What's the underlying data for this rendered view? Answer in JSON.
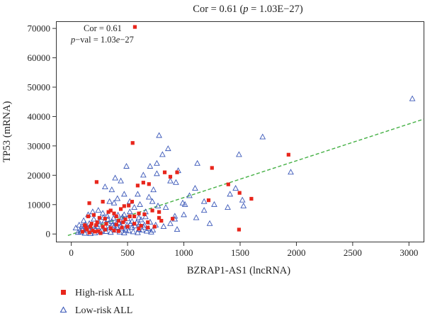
{
  "chart_data": {
    "type": "scatter",
    "title_main": "Cor = 0.61 (",
    "title_p": "p",
    "title_rest": " = 1.03E−27)",
    "xlabel": "BZRAP1-AS1 (lncRNA)",
    "ylabel": "TP53 (mRNA)",
    "xlim": [
      -130,
      3130
    ],
    "ylim": [
      -2600,
      72200
    ],
    "x_ticks": [
      0,
      500,
      1000,
      1500,
      2000,
      2500,
      3000
    ],
    "y_ticks": [
      0,
      10000,
      20000,
      30000,
      40000,
      50000,
      60000,
      70000
    ],
    "x_tick_labels": [
      "0",
      "500",
      "1000",
      "1500",
      "2000",
      "2500",
      "3000"
    ],
    "y_tick_labels": [
      "0",
      "10000",
      "20000",
      "30000",
      "40000",
      "50000",
      "60000",
      "70000"
    ],
    "annotation": {
      "cor_text": "Cor = 0.61",
      "p_label": "p",
      "p_rest": "−val = 1.03",
      "p_e": "e",
      "p_exp": "−27"
    },
    "fit_line": {
      "x": [
        -30,
        3130
      ],
      "y": [
        -500,
        39100
      ],
      "color": "#44b044"
    },
    "legend_position": "bottom-left",
    "series": [
      {
        "name": "High-risk ALL",
        "marker": "square",
        "color": "#e8261c",
        "points": [
          [
            565,
            70500
          ],
          [
            545,
            31000
          ],
          [
            940,
            21000
          ],
          [
            1250,
            22500
          ],
          [
            1930,
            27000
          ],
          [
            1495,
            14000
          ],
          [
            1395,
            16900
          ],
          [
            1600,
            12000
          ],
          [
            1220,
            11500
          ],
          [
            690,
            17000
          ],
          [
            830,
            21000
          ],
          [
            880,
            19500
          ],
          [
            225,
            17700
          ],
          [
            160,
            10500
          ],
          [
            280,
            11000
          ],
          [
            540,
            11000
          ],
          [
            640,
            17500
          ],
          [
            590,
            16500
          ],
          [
            380,
            7000
          ],
          [
            470,
            9500
          ],
          [
            510,
            9700
          ],
          [
            440,
            8500
          ],
          [
            350,
            8000
          ],
          [
            720,
            8000
          ],
          [
            780,
            7500
          ],
          [
            650,
            6700
          ],
          [
            600,
            7000
          ],
          [
            560,
            6000
          ],
          [
            780,
            5500
          ],
          [
            900,
            5200
          ],
          [
            680,
            4000
          ],
          [
            800,
            4500
          ],
          [
            1490,
            1500
          ],
          [
            150,
            6000
          ],
          [
            200,
            6500
          ],
          [
            250,
            5500
          ],
          [
            300,
            5200
          ],
          [
            330,
            7500
          ],
          [
            400,
            6000
          ],
          [
            480,
            5000
          ],
          [
            520,
            6000
          ],
          [
            460,
            4000
          ],
          [
            420,
            4500
          ],
          [
            560,
            3500
          ],
          [
            620,
            2800
          ],
          [
            680,
            2200
          ],
          [
            740,
            2500
          ],
          [
            120,
            3000
          ],
          [
            180,
            3500
          ],
          [
            220,
            3000
          ],
          [
            280,
            2500
          ],
          [
            140,
            1500
          ],
          [
            190,
            1200
          ],
          [
            240,
            1000
          ],
          [
            300,
            1500
          ],
          [
            350,
            2000
          ],
          [
            380,
            1200
          ],
          [
            420,
            1000
          ],
          [
            100,
            800
          ],
          [
            160,
            500
          ],
          [
            210,
            800
          ],
          [
            260,
            300
          ],
          [
            500,
            2500
          ],
          [
            600,
            1800
          ],
          [
            230,
            4000
          ],
          [
            310,
            3500
          ],
          [
            400,
            3200
          ],
          [
            450,
            2200
          ],
          [
            130,
            2200
          ],
          [
            170,
            2600
          ]
        ]
      },
      {
        "name": "Low-risk ALL",
        "marker": "triangle-open",
        "color": "#3a57b8",
        "points": [
          [
            3030,
            46000
          ],
          [
            1700,
            33000
          ],
          [
            1950,
            21000
          ],
          [
            1490,
            27000
          ],
          [
            780,
            33500
          ],
          [
            810,
            27000
          ],
          [
            860,
            29000
          ],
          [
            760,
            24000
          ],
          [
            880,
            18000
          ],
          [
            930,
            17500
          ],
          [
            1120,
            24000
          ],
          [
            950,
            21500
          ],
          [
            1100,
            15500
          ],
          [
            1180,
            11000
          ],
          [
            1410,
            13500
          ],
          [
            1460,
            15500
          ],
          [
            1520,
            11500
          ],
          [
            1530,
            9500
          ],
          [
            1390,
            9000
          ],
          [
            1230,
            3500
          ],
          [
            1270,
            10000
          ],
          [
            1010,
            10000
          ],
          [
            1050,
            13000
          ],
          [
            990,
            10500
          ],
          [
            920,
            5000
          ],
          [
            700,
            23000
          ],
          [
            640,
            20000
          ],
          [
            760,
            20500
          ],
          [
            730,
            15000
          ],
          [
            690,
            12500
          ],
          [
            590,
            13500
          ],
          [
            520,
            11000
          ],
          [
            470,
            13500
          ],
          [
            410,
            12000
          ],
          [
            360,
            15000
          ],
          [
            300,
            16000
          ],
          [
            490,
            23000
          ],
          [
            390,
            19000
          ],
          [
            440,
            18000
          ],
          [
            380,
            10500
          ],
          [
            340,
            11000
          ],
          [
            560,
            9000
          ],
          [
            610,
            10000
          ],
          [
            660,
            7500
          ],
          [
            720,
            11000
          ],
          [
            770,
            9500
          ],
          [
            840,
            9000
          ],
          [
            920,
            6000
          ],
          [
            1000,
            6500
          ],
          [
            1110,
            5500
          ],
          [
            1180,
            8000
          ],
          [
            470,
            6500
          ],
          [
            520,
            7500
          ],
          [
            600,
            5500
          ],
          [
            650,
            3000
          ],
          [
            700,
            4000
          ],
          [
            750,
            3000
          ],
          [
            820,
            2500
          ],
          [
            880,
            3500
          ],
          [
            940,
            1500
          ],
          [
            600,
            1500
          ],
          [
            540,
            2200
          ],
          [
            480,
            1600
          ],
          [
            440,
            2800
          ],
          [
            400,
            3500
          ],
          [
            360,
            4200
          ],
          [
            320,
            6000
          ],
          [
            280,
            7000
          ],
          [
            240,
            8000
          ],
          [
            200,
            5000
          ],
          [
            160,
            3500
          ],
          [
            130,
            2000
          ],
          [
            100,
            1500
          ],
          [
            80,
            1000
          ],
          [
            60,
            500
          ],
          [
            40,
            2000
          ],
          [
            70,
            3000
          ],
          [
            110,
            4500
          ],
          [
            150,
            6500
          ],
          [
            190,
            7500
          ],
          [
            230,
            2500
          ],
          [
            270,
            1200
          ],
          [
            310,
            800
          ],
          [
            350,
            500
          ],
          [
            390,
            1200
          ],
          [
            430,
            600
          ],
          [
            470,
            300
          ],
          [
            510,
            1000
          ],
          [
            550,
            700
          ],
          [
            590,
            400
          ],
          [
            630,
            1300
          ],
          [
            670,
            900
          ],
          [
            710,
            600
          ],
          [
            120,
            200
          ],
          [
            170,
            100
          ],
          [
            210,
            300
          ],
          [
            260,
            700
          ],
          [
            300,
            2500
          ],
          [
            340,
            2000
          ],
          [
            380,
            2700
          ],
          [
            420,
            3800
          ],
          [
            460,
            4600
          ],
          [
            500,
            5200
          ],
          [
            540,
            4200
          ],
          [
            580,
            3800
          ],
          [
            620,
            4800
          ],
          [
            660,
            5800
          ],
          [
            95,
            2500
          ],
          [
            135,
            1200
          ],
          [
            175,
            900
          ],
          [
            215,
            1700
          ],
          [
            255,
            3300
          ],
          [
            295,
            4400
          ],
          [
            335,
            3600
          ],
          [
            375,
            5300
          ],
          [
            415,
            6400
          ],
          [
            455,
            5700
          ],
          [
            495,
            3000
          ],
          [
            85,
            600
          ],
          [
            125,
            3200
          ],
          [
            165,
            2400
          ],
          [
            205,
            1900
          ],
          [
            245,
            4100
          ],
          [
            285,
            5600
          ],
          [
            325,
            4900
          ],
          [
            365,
            3100
          ],
          [
            405,
            2300
          ],
          [
            445,
            1900
          ],
          [
            485,
            1100
          ],
          [
            525,
            3400
          ],
          [
            565,
            2700
          ],
          [
            605,
            3300
          ],
          [
            645,
            2300
          ],
          [
            685,
            1800
          ],
          [
            725,
            1300
          ]
        ]
      }
    ]
  }
}
